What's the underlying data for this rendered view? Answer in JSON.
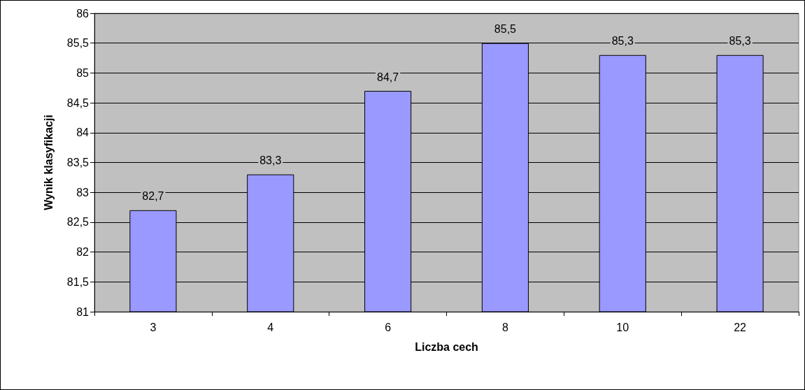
{
  "chart_data": {
    "type": "bar",
    "xlabel": "Liczba cech",
    "ylabel": "Wynik klasyfikacji",
    "categories": [
      "3",
      "4",
      "6",
      "8",
      "10",
      "22"
    ],
    "values": [
      82.7,
      83.3,
      84.7,
      85.5,
      85.3,
      85.3
    ],
    "value_labels": [
      "82,7",
      "83,3",
      "84,7",
      "85,5",
      "85,3",
      "85,3"
    ],
    "color": "#9999ff",
    "ylim": [
      81,
      86
    ],
    "yticks": [
      81,
      {
        "value": 81.5,
        "label": "81,5"
      },
      82,
      {
        "value": 82.5,
        "label": "82,5"
      },
      83,
      {
        "value": 83.5,
        "label": "83,5"
      },
      84,
      {
        "value": 84.5,
        "label": "84,5"
      },
      85,
      {
        "value": 85.5,
        "label": "85,5"
      },
      86
    ],
    "grid": "y"
  }
}
